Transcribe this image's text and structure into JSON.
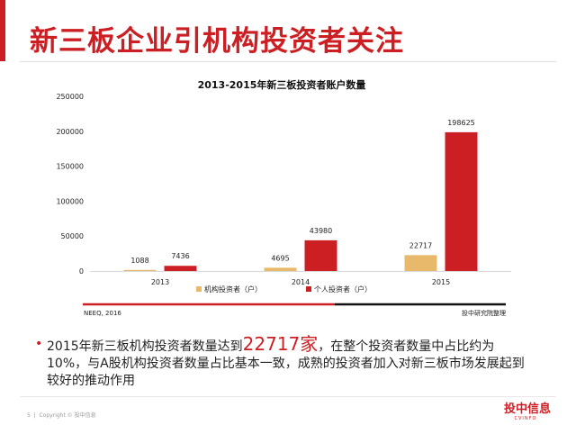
{
  "slide": {
    "title": "新三板企业引机构投资者关注",
    "bullet_pre": "2015年新三板机构投资者数量达到",
    "bullet_highlight": "22717家",
    "bullet_post": "，在整个投资者数量中占比约为10%，与A股机构投资者数量占比基本一致，成熟的投资者加入对新三板市场发展起到较好的推动作用",
    "source_left": "NEEQ, 2016",
    "source_right": "投中研究院整理",
    "page_number": "5",
    "copyright": "Copyright © 投中信息",
    "brand_cn": "投中信息",
    "brand_en": "CVINFO"
  },
  "colors": {
    "accent": "#cc1f24",
    "institution": "#e8b96a",
    "individual": "#cc1f24"
  },
  "chart_data": {
    "type": "bar",
    "title": "2013-2015年新三板投资者账户数量",
    "categories": [
      "2013",
      "2014",
      "2015"
    ],
    "series": [
      {
        "name": "机构投资者（户）",
        "values": [
          1088,
          4695,
          22717
        ]
      },
      {
        "name": "个人投资者（户）",
        "values": [
          7436,
          43980,
          198625
        ]
      }
    ],
    "ylim": [
      0,
      250000
    ],
    "yticks": [
      "0",
      "50000",
      "100000",
      "150000",
      "200000",
      "250000"
    ],
    "legend": "bottom",
    "grid": false
  }
}
